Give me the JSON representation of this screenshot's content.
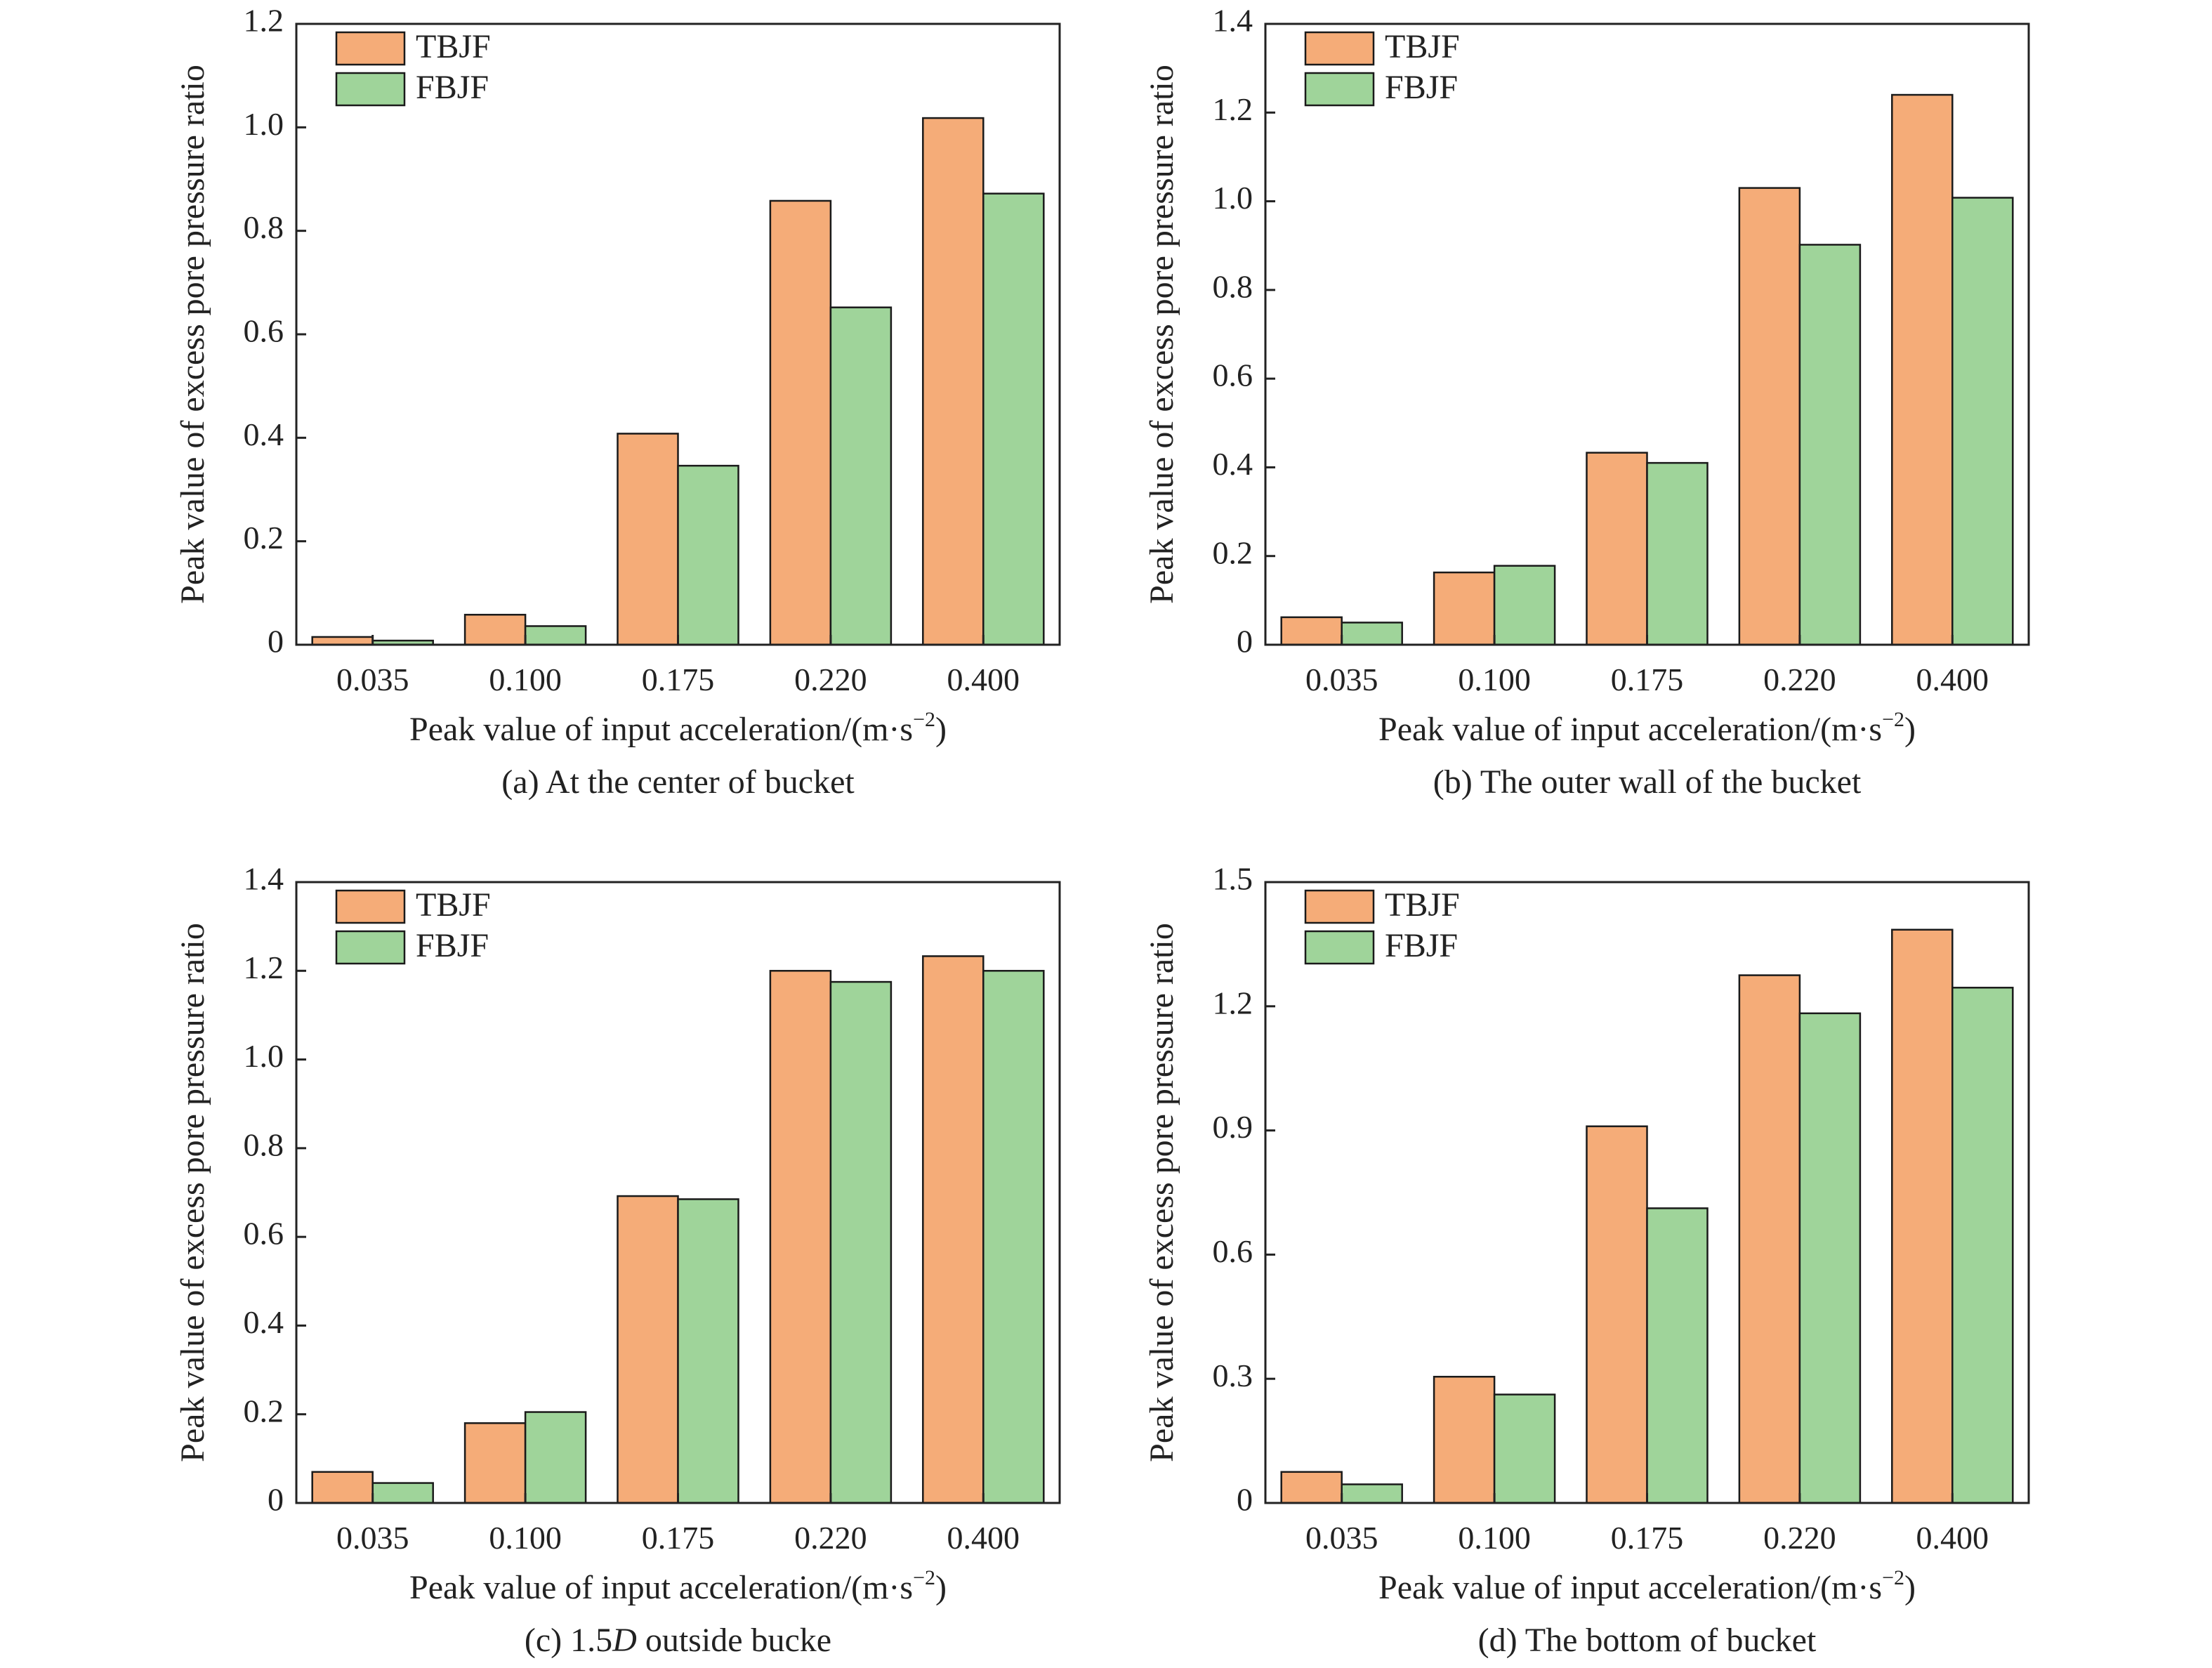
{
  "series_style": {
    "TBJF": "#f5ac78",
    "FBJF": "#9fd49a",
    "stroke": "#1a1a1a",
    "axis": "#222222",
    "text": "#222222"
  },
  "chart_data": [
    {
      "type": "bar",
      "title": "",
      "caption": "(a) At the center of bucket",
      "caption_parts": [
        {
          "t": "(a) At the center of bucket"
        }
      ],
      "xlabel": "Peak value of input acceleration/(m·s",
      "xlabel_exp": "−2",
      "xlabel_end": ")",
      "ylabel": "Peak value of excess pore pressure ratio",
      "categories": [
        "0.035",
        "0.100",
        "0.175",
        "0.220",
        "0.400"
      ],
      "ylim": [
        0,
        1.2
      ],
      "yticks": [
        0,
        0.2,
        0.4,
        0.6,
        0.8,
        1.0,
        1.2
      ],
      "ytick_labels": [
        "0",
        "0.2",
        "0.4",
        "0.6",
        "0.8",
        "1.0",
        "1.2"
      ],
      "legend": "top-left",
      "series": [
        {
          "name": "TBJF",
          "values": [
            0.015,
            0.058,
            0.408,
            0.858,
            1.018
          ]
        },
        {
          "name": "FBJF",
          "values": [
            0.008,
            0.036,
            0.346,
            0.652,
            0.872
          ]
        }
      ]
    },
    {
      "type": "bar",
      "title": "",
      "caption": "(b) The outer wall of the bucket",
      "caption_parts": [
        {
          "t": "(b) The outer wall of the bucket"
        }
      ],
      "xlabel": "Peak value of input acceleration/(m·s",
      "xlabel_exp": "−2",
      "xlabel_end": ")",
      "ylabel": "Peak value of excess pore pressure ratio",
      "categories": [
        "0.035",
        "0.100",
        "0.175",
        "0.220",
        "0.400"
      ],
      "ylim": [
        0,
        1.4
      ],
      "yticks": [
        0,
        0.2,
        0.4,
        0.6,
        0.8,
        1.0,
        1.2,
        1.4
      ],
      "ytick_labels": [
        "0",
        "0.2",
        "0.4",
        "0.6",
        "0.8",
        "1.0",
        "1.2",
        "1.4"
      ],
      "legend": "top-left",
      "series": [
        {
          "name": "TBJF",
          "values": [
            0.062,
            0.163,
            0.433,
            1.03,
            1.24
          ]
        },
        {
          "name": "FBJF",
          "values": [
            0.05,
            0.178,
            0.41,
            0.902,
            1.008
          ]
        }
      ]
    },
    {
      "type": "bar",
      "title": "",
      "caption": "(c) 1.5D outside bucke",
      "caption_parts": [
        {
          "t": "(c) 1.5"
        },
        {
          "t": "D",
          "i": true
        },
        {
          "t": " outside bucke"
        }
      ],
      "xlabel": "Peak value of input acceleration/(m·s",
      "xlabel_exp": "−2",
      "xlabel_end": ")",
      "ylabel": "Peak value of excess pore pressure ratio",
      "categories": [
        "0.035",
        "0.100",
        "0.175",
        "0.220",
        "0.400"
      ],
      "ylim": [
        0,
        1.4
      ],
      "yticks": [
        0,
        0.2,
        0.4,
        0.6,
        0.8,
        1.0,
        1.2,
        1.4
      ],
      "ytick_labels": [
        "0",
        "0.2",
        "0.4",
        "0.6",
        "0.8",
        "1.0",
        "1.2",
        "1.4"
      ],
      "legend": "top-left",
      "series": [
        {
          "name": "TBJF",
          "values": [
            0.07,
            0.18,
            0.692,
            1.2,
            1.233
          ]
        },
        {
          "name": "FBJF",
          "values": [
            0.045,
            0.205,
            0.685,
            1.175,
            1.2
          ]
        }
      ]
    },
    {
      "type": "bar",
      "title": "",
      "caption": "(d) The bottom of bucket",
      "caption_parts": [
        {
          "t": "(d) The bottom of bucket"
        }
      ],
      "xlabel": "Peak value of input acceleration/(m·s",
      "xlabel_exp": "−2",
      "xlabel_end": ")",
      "ylabel": "Peak value of excess pore pressure ratio",
      "categories": [
        "0.035",
        "0.100",
        "0.175",
        "0.220",
        "0.400"
      ],
      "ylim": [
        0,
        1.5
      ],
      "yticks": [
        0,
        0.3,
        0.6,
        0.9,
        1.2,
        1.5
      ],
      "ytick_labels": [
        "0",
        "0.3",
        "0.6",
        "0.9",
        "1.2",
        "1.5"
      ],
      "legend": "top-left",
      "series": [
        {
          "name": "TBJF",
          "values": [
            0.075,
            0.305,
            0.91,
            1.275,
            1.385
          ]
        },
        {
          "name": "FBJF",
          "values": [
            0.045,
            0.262,
            0.712,
            1.183,
            1.245
          ]
        }
      ]
    }
  ]
}
